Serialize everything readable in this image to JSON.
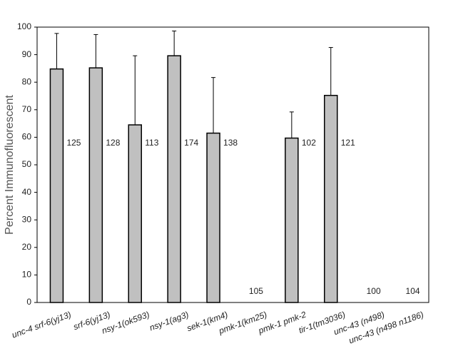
{
  "chart_data": {
    "type": "bar",
    "y_label": "Percent  Immunofluorescent",
    "categories": [
      "unc-4 srf-6(yj13)",
      "srf-6(yj13)",
      "nsy-1(ok593)",
      "nsy-1(ag3)",
      "sek-1(km4)",
      "pmk-1(km25)",
      "pmk-1 pmk-2",
      "tir-1(tm3036)",
      "unc-43 (n498)",
      "unc-43 (n498 n1186)"
    ],
    "values": [
      84.8,
      85.2,
      64.5,
      89.6,
      61.5,
      0,
      59.7,
      75.2,
      0,
      0
    ],
    "errors": [
      12.9,
      12.1,
      25.1,
      9.0,
      20.2,
      null,
      9.5,
      17.4,
      null,
      null
    ],
    "n_labels": [
      125,
      128,
      113,
      174,
      138,
      105,
      102,
      121,
      100,
      104
    ],
    "color": "#c0c0c0",
    "ylim": [
      0,
      100
    ],
    "yticks": [
      0,
      10,
      20,
      30,
      40,
      50,
      60,
      70,
      80,
      90,
      100
    ]
  }
}
